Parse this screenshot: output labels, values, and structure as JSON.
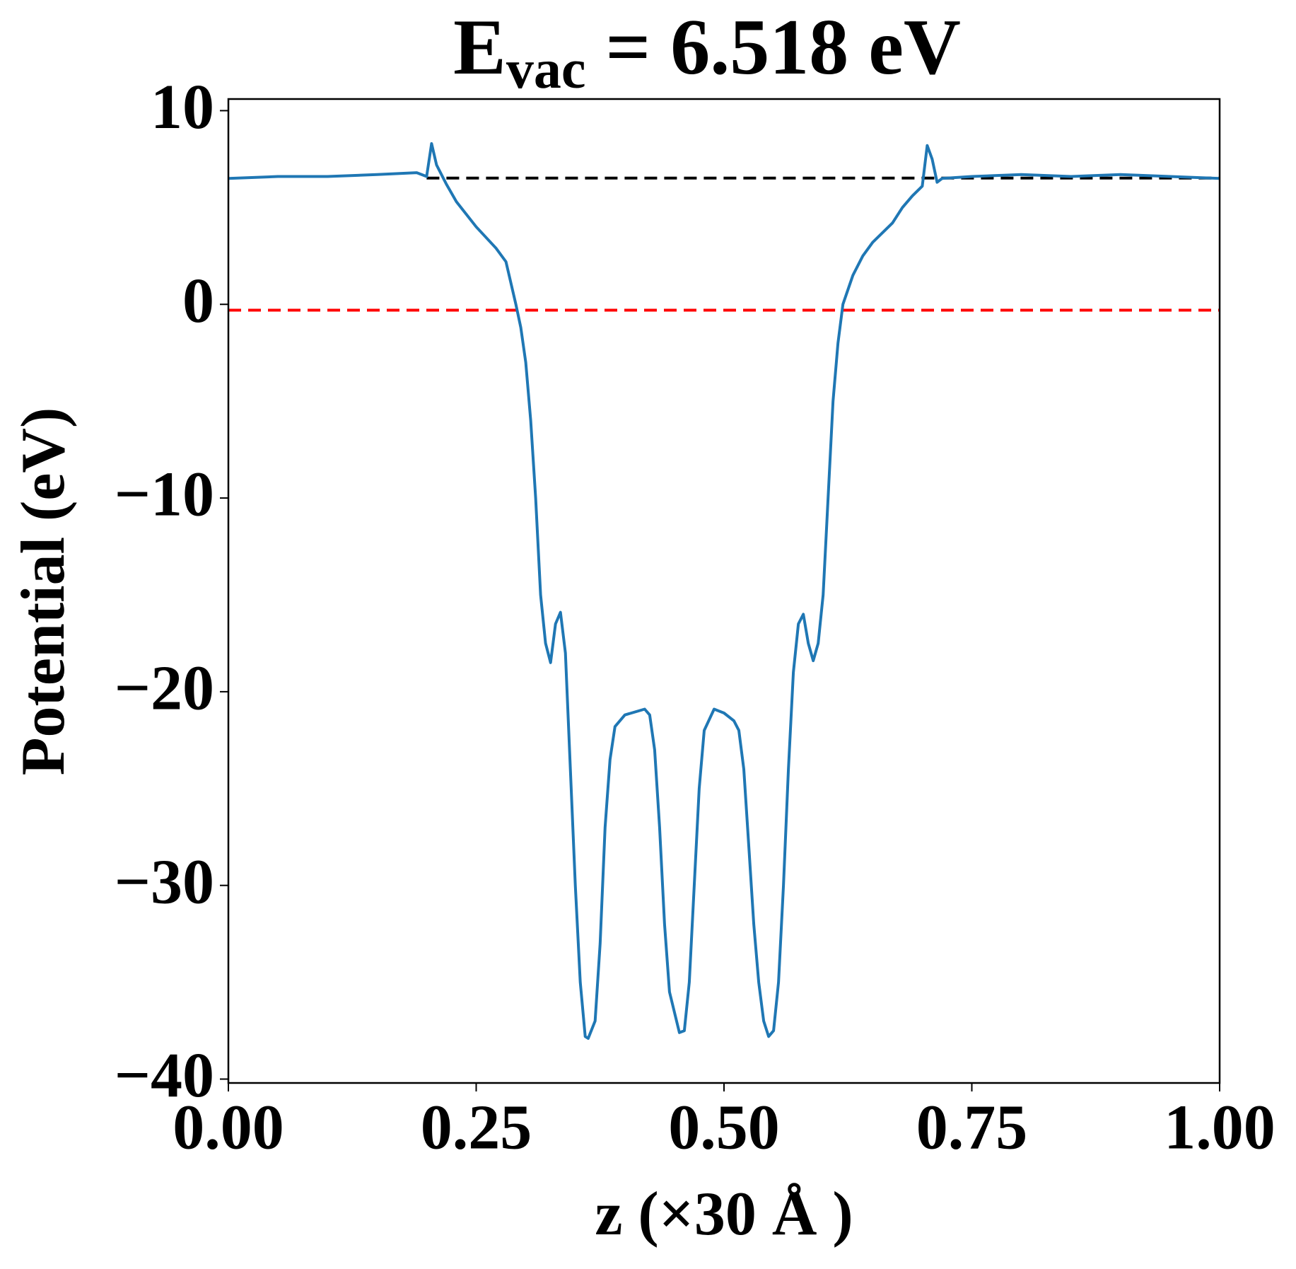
{
  "chart_data": {
    "type": "line",
    "title": {
      "main": "E",
      "sub": "vac",
      "rest": " = 6.518 eV"
    },
    "x_label": "z (×30 Å )",
    "y_label": "Potential (eV)",
    "xlim": [
      0,
      1
    ],
    "ylim": [
      -40.2,
      10.6
    ],
    "xticks": [
      {
        "value": 0,
        "label": "0.00"
      },
      {
        "value": 0.25,
        "label": "0.25"
      },
      {
        "value": 0.5,
        "label": "0.50"
      },
      {
        "value": 0.75,
        "label": "0.75"
      },
      {
        "value": 1,
        "label": "1.00"
      }
    ],
    "yticks": [
      {
        "value": -40,
        "label": "−40"
      },
      {
        "value": -30,
        "label": "−30"
      },
      {
        "value": -20,
        "label": "−20"
      },
      {
        "value": -10,
        "label": "−10"
      },
      0,
      10
    ],
    "reference_lines": [
      {
        "value": 6.518,
        "color": "#000000",
        "xrange": [
          0.2,
          1
        ]
      },
      {
        "value": -0.3,
        "color": "#ff0000",
        "xrange": [
          0,
          1
        ]
      }
    ],
    "series": [
      {
        "color": "#1f77b4",
        "x": [
          0,
          0.05,
          0.1,
          0.15,
          0.19,
          0.2,
          0.205,
          0.21,
          0.22,
          0.23,
          0.25,
          0.27,
          0.28,
          0.285,
          0.29,
          0.295,
          0.3,
          0.305,
          0.31,
          0.315,
          0.32,
          0.325,
          0.33,
          0.335,
          0.34,
          0.345,
          0.35,
          0.355,
          0.36,
          0.363,
          0.37,
          0.375,
          0.38,
          0.385,
          0.39,
          0.4,
          0.42,
          0.425,
          0.43,
          0.435,
          0.44,
          0.445,
          0.455,
          0.46,
          0.465,
          0.47,
          0.475,
          0.48,
          0.49,
          0.5,
          0.51,
          0.515,
          0.52,
          0.525,
          0.53,
          0.535,
          0.54,
          0.545,
          0.55,
          0.555,
          0.56,
          0.565,
          0.57,
          0.575,
          0.58,
          0.585,
          0.59,
          0.595,
          0.6,
          0.605,
          0.61,
          0.615,
          0.62,
          0.63,
          0.64,
          0.65,
          0.67,
          0.68,
          0.69,
          0.7,
          0.705,
          0.71,
          0.715,
          0.72,
          0.75,
          0.8,
          0.85,
          0.9,
          0.95,
          1
        ],
        "values": [
          6.5,
          6.6,
          6.6,
          6.7,
          6.8,
          6.6,
          8.3,
          7.2,
          6.2,
          5.3,
          4.0,
          2.9,
          2.2,
          1.1,
          0,
          -1.2,
          -3.0,
          -6.0,
          -10,
          -15,
          -17.5,
          -18.5,
          -16.5,
          -15.9,
          -18,
          -24,
          -30,
          -35,
          -37.8,
          -37.9,
          -37,
          -33,
          -27,
          -23.5,
          -21.8,
          -21.2,
          -20.9,
          -21.2,
          -23,
          -27,
          -32,
          -35.5,
          -37.6,
          -37.5,
          -35,
          -30,
          -25,
          -22,
          -20.9,
          -21.1,
          -21.5,
          -22,
          -24,
          -28,
          -32,
          -35,
          -37,
          -37.8,
          -37.5,
          -35,
          -30,
          -24,
          -19,
          -16.5,
          -16,
          -17.5,
          -18.4,
          -17.5,
          -15,
          -10,
          -5,
          -2,
          0,
          1.5,
          2.5,
          3.2,
          4.2,
          5.0,
          5.6,
          6.1,
          8.2,
          7.5,
          6.3,
          6.5,
          6.6,
          6.7,
          6.6,
          6.7,
          6.6,
          6.5
        ]
      }
    ]
  }
}
